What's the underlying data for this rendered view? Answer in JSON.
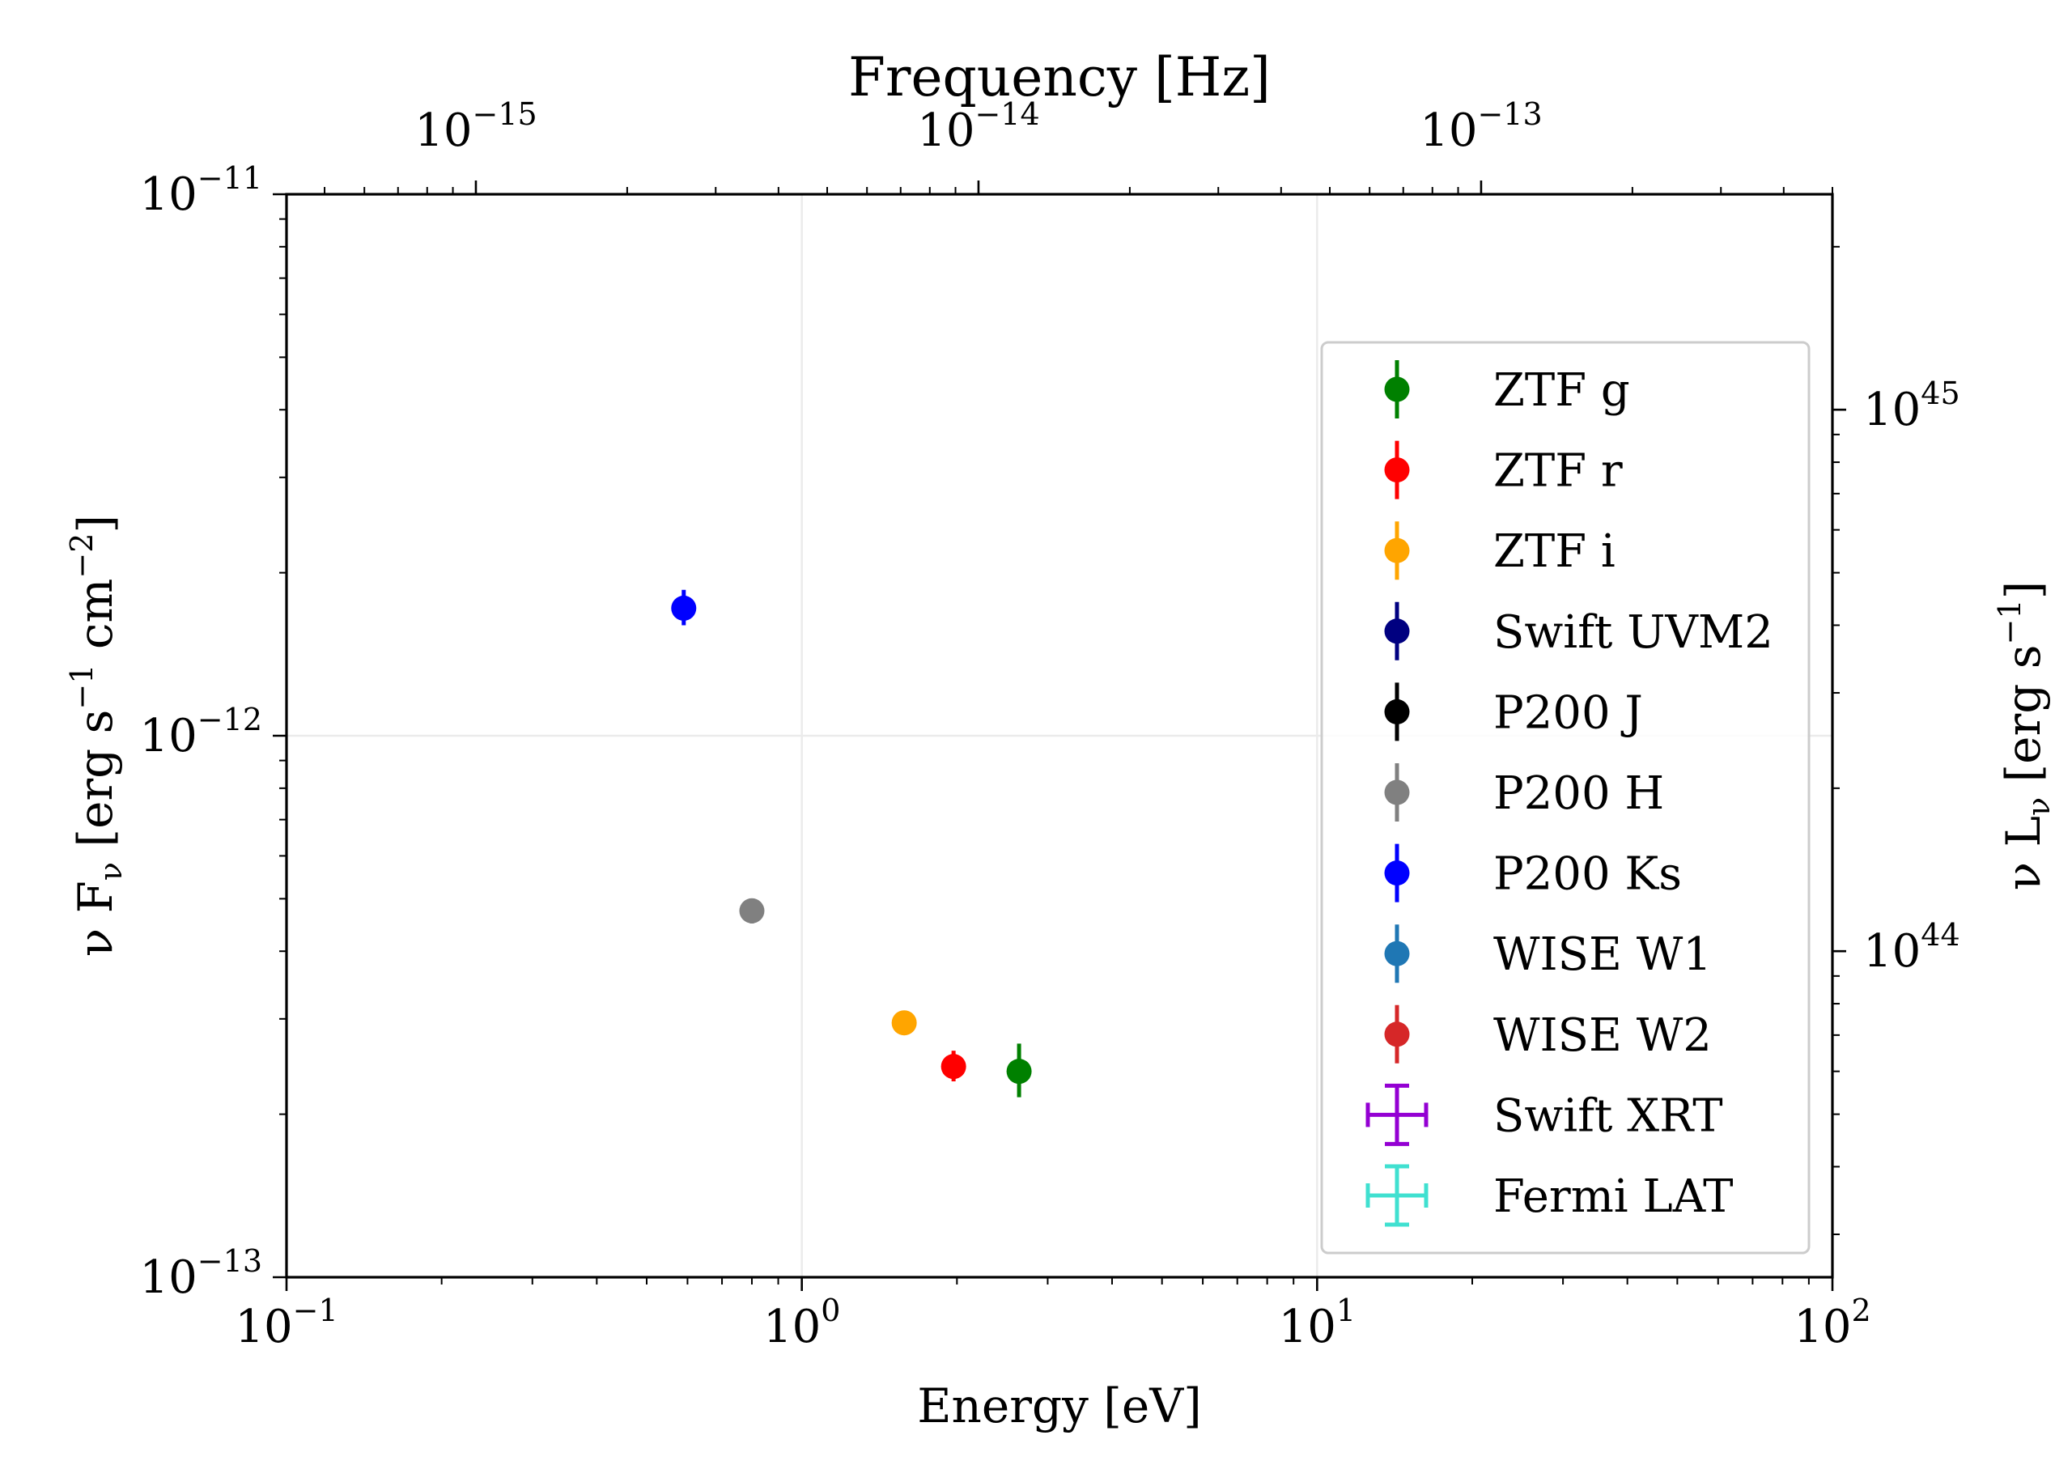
{
  "chart_data": {
    "type": "scatter",
    "title": "",
    "xlabel": "Energy [eV]",
    "x2label": "Frequency [Hz]",
    "ylabel": "ν F_ν [erg s^−1 cm^−2]",
    "y2label": "ν L_ν [erg s^−1]",
    "xscale": "log",
    "yscale": "log",
    "xlim": [
      0.1,
      100
    ],
    "ylim": [
      1e-13,
      1e-11
    ],
    "y2lim": [
      2.5e+43,
      2.5e+45
    ],
    "x2lim": [
      4.2e-16,
      5e-13
    ],
    "grid": true,
    "legend_position": "right",
    "x_ticks": [
      {
        "value": 0.1,
        "base": "10",
        "exp": "−1"
      },
      {
        "value": 1,
        "base": "10",
        "exp": "0"
      },
      {
        "value": 10,
        "base": "10",
        "exp": "1"
      },
      {
        "value": 100,
        "base": "10",
        "exp": "2"
      }
    ],
    "y_ticks": [
      {
        "value": 1e-13,
        "base": "10",
        "exp": "−13"
      },
      {
        "value": 1e-12,
        "base": "10",
        "exp": "−12"
      },
      {
        "value": 1e-11,
        "base": "10",
        "exp": "−11"
      }
    ],
    "y2_ticks": [
      {
        "value": 1e+44,
        "base": "10",
        "exp": "44"
      },
      {
        "value": 1e+45,
        "base": "10",
        "exp": "45"
      }
    ],
    "x2_ticks": [
      {
        "value": 1e-15,
        "base": "10",
        "exp": "−15"
      },
      {
        "value": 1e-14,
        "base": "10",
        "exp": "−14"
      },
      {
        "value": 1e-13,
        "base": "10",
        "exp": "−13"
      }
    ],
    "series": [
      {
        "name": "ZTF g",
        "color": "#008000",
        "marker": "circle",
        "points": [
          {
            "x": 2.64,
            "y": 2.4e-13,
            "yerr_low": 2.15e-13,
            "yerr_high": 2.7e-13
          }
        ]
      },
      {
        "name": "ZTF r",
        "color": "#ff0000",
        "marker": "circle",
        "points": [
          {
            "x": 1.97,
            "y": 2.45e-13,
            "yerr_low": 2.3e-13,
            "yerr_high": 2.62e-13
          }
        ]
      },
      {
        "name": "ZTF i",
        "color": "#ffa500",
        "marker": "circle",
        "points": [
          {
            "x": 1.58,
            "y": 2.95e-13,
            "yerr_low": 2.9e-13,
            "yerr_high": 3e-13
          }
        ]
      },
      {
        "name": "Swift UVM2",
        "color": "#000080",
        "marker": "circle",
        "points": []
      },
      {
        "name": "P200 J",
        "color": "#000000",
        "marker": "circle",
        "points": []
      },
      {
        "name": "P200 H",
        "color": "#808080",
        "marker": "circle",
        "points": [
          {
            "x": 0.8,
            "y": 4.75e-13,
            "yerr_low": 4.5e-13,
            "yerr_high": 5e-13
          }
        ]
      },
      {
        "name": "P200 Ks",
        "color": "#0000ff",
        "marker": "circle",
        "points": [
          {
            "x": 0.59,
            "y": 1.72e-12,
            "yerr_low": 1.6e-12,
            "yerr_high": 1.86e-12
          }
        ]
      },
      {
        "name": "WISE W1",
        "color": "#1f77b4",
        "marker": "circle",
        "points": []
      },
      {
        "name": "WISE W2",
        "color": "#d62728",
        "marker": "circle",
        "points": []
      },
      {
        "name": "Swift XRT",
        "color": "#9400d3",
        "marker": "cross-errorbar",
        "points": []
      },
      {
        "name": "Fermi LAT",
        "color": "#40e0d0",
        "marker": "cross-errorbar",
        "points": []
      }
    ]
  }
}
